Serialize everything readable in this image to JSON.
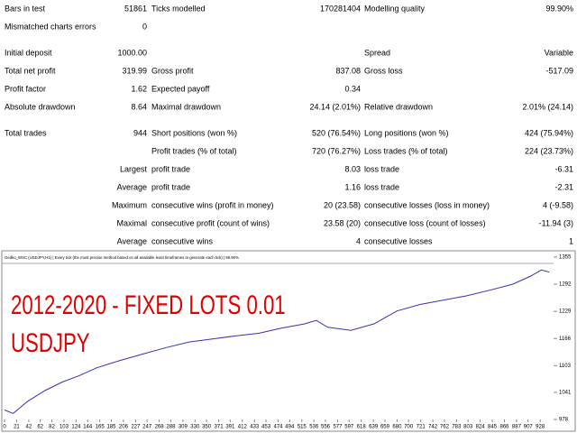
{
  "report": {
    "rows": [
      [
        "Bars in test",
        "51861",
        "Ticks modelled",
        "170281404",
        "Modelling quality",
        "99.90%"
      ],
      [
        "Mismatched charts errors",
        "0",
        null,
        null,
        null,
        null
      ],
      [
        "Initial deposit",
        "1000.00",
        null,
        null,
        "Spread",
        "Variable"
      ],
      [
        "Total net profit",
        "319.99",
        "Gross profit",
        "837.08",
        "Gross loss",
        "-517.09"
      ],
      [
        "Profit factor",
        "1.62",
        "Expected payoff",
        "0.34",
        null,
        null
      ],
      [
        "Absolute drawdown",
        "8.64",
        "Maximal drawdown",
        "24.14 (2.01%)",
        "Relative drawdown",
        "2.01% (24.14)"
      ],
      [
        "Total trades",
        "944",
        "Short positions (won %)",
        "520 (76.54%)",
        "Long positions (won %)",
        "424 (75.94%)"
      ],
      [
        null,
        null,
        "Profit trades (% of total)",
        "720 (76.27%)",
        "Loss trades (% of total)",
        "224 (23.73%)"
      ],
      [
        "Largest",
        null,
        "profit trade",
        "8.03",
        "loss trade",
        "-6.31"
      ],
      [
        "Average",
        null,
        "profit trade",
        "1.16",
        "loss trade",
        "-2.31"
      ],
      [
        "Maximum",
        null,
        "consecutive wins (profit in money)",
        "20 (23.58)",
        "consecutive losses (loss in money)",
        "4 (-9.58)"
      ],
      [
        "Maximal",
        null,
        "consecutive profit (count of wins)",
        "23.58 (20)",
        "consecutive loss (count of losses)",
        "-11.94 (3)"
      ],
      [
        "Average",
        null,
        "consecutive wins",
        "4",
        "consecutive losses",
        "1"
      ]
    ]
  },
  "chart_data": {
    "type": "line",
    "title": "Gedko_WSC (USDJPY,H1) | Every tick (the most precise method based on all available least timeframes to generate each tick) | 99.90%",
    "annotations": [
      "2012-2020 - FIXED LOTS 0.01",
      "USDJPY"
    ],
    "annotation_color": "#e00000",
    "x": [
      0,
      15,
      40,
      70,
      100,
      130,
      160,
      200,
      240,
      280,
      320,
      360,
      400,
      440,
      480,
      520,
      540,
      560,
      600,
      640,
      680,
      720,
      760,
      800,
      840,
      880,
      910,
      930,
      944
    ],
    "series": [
      {
        "color": "#3434b4",
        "values": [
          1000,
          992,
          1020,
          1045,
          1065,
          1080,
          1098,
          1115,
          1130,
          1145,
          1158,
          1165,
          1172,
          1178,
          1190,
          1200,
          1208,
          1192,
          1185,
          1200,
          1230,
          1245,
          1255,
          1265,
          1278,
          1292,
          1310,
          1325,
          1320
        ]
      }
    ],
    "xlim": [
      0,
      948
    ],
    "ylim": [
      978,
      1355
    ],
    "xticks": [
      0,
      21,
      42,
      62,
      82,
      103,
      124,
      144,
      165,
      185,
      206,
      227,
      247,
      268,
      288,
      309,
      330,
      350,
      371,
      391,
      412,
      433,
      453,
      474,
      494,
      515,
      536,
      556,
      577,
      597,
      618,
      639,
      659,
      680,
      700,
      721,
      742,
      762,
      783,
      803,
      824,
      845,
      866,
      887,
      907,
      928
    ],
    "yticks": [
      978,
      1041,
      1103,
      1166,
      1229,
      1292,
      1355
    ]
  }
}
